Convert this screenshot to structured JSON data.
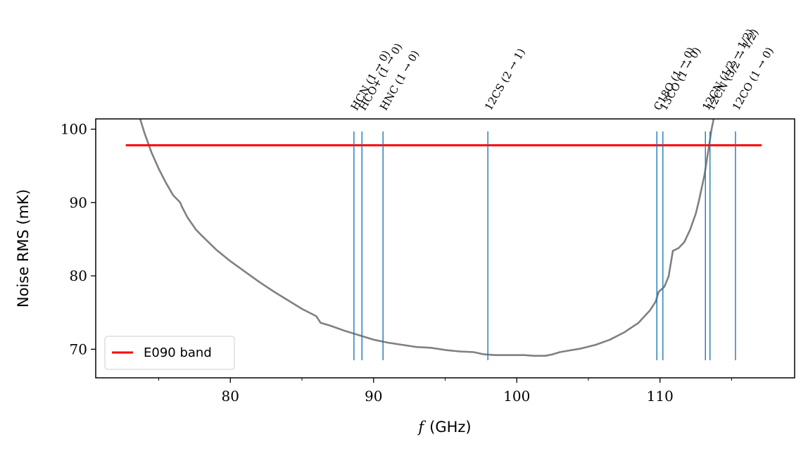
{
  "chart_data": {
    "type": "line",
    "xlabel_var": "f",
    "xlabel_unit": "(GHz)",
    "ylabel": "Noise RMS (mK)",
    "xlim": [
      70.6,
      119.4
    ],
    "ylim": [
      66.1,
      101.4
    ],
    "x_major_ticks": [
      80,
      90,
      100,
      110
    ],
    "x_minor_ticks": [
      75,
      85,
      95,
      105,
      115
    ],
    "y_ticks": [
      70,
      80,
      90,
      100
    ],
    "grid": false,
    "legend": {
      "position": "lower-left",
      "entries": [
        {
          "label": "E090 band",
          "color": "#ff0000"
        }
      ]
    },
    "band_line": {
      "name": "E090 band",
      "x": [
        72.7,
        117.1
      ],
      "y": 97.8,
      "color": "#ff0000"
    },
    "noise_curve": {
      "name": "noise",
      "color": "#808080",
      "points": [
        [
          73.7,
          101.4
        ],
        [
          74.0,
          99.5
        ],
        [
          74.5,
          96.8
        ],
        [
          75.0,
          94.6
        ],
        [
          75.5,
          92.7
        ],
        [
          76.0,
          91.0
        ],
        [
          76.5,
          90.0
        ],
        [
          76.6,
          89.5
        ],
        [
          77.0,
          88.0
        ],
        [
          77.6,
          86.3
        ],
        [
          78.0,
          85.5
        ],
        [
          79.0,
          83.6
        ],
        [
          80.0,
          82.0
        ],
        [
          81.0,
          80.6
        ],
        [
          82.0,
          79.2
        ],
        [
          83.0,
          77.9
        ],
        [
          84.0,
          76.7
        ],
        [
          85.0,
          75.5
        ],
        [
          86.0,
          74.5
        ],
        [
          86.3,
          73.6
        ],
        [
          87.0,
          73.2
        ],
        [
          88.0,
          72.5
        ],
        [
          89.0,
          71.9
        ],
        [
          90.0,
          71.3
        ],
        [
          91.0,
          70.9
        ],
        [
          92.0,
          70.6
        ],
        [
          93.0,
          70.3
        ],
        [
          94.0,
          70.2
        ],
        [
          95.0,
          69.9
        ],
        [
          96.0,
          69.7
        ],
        [
          97.0,
          69.6
        ],
        [
          97.7,
          69.3
        ],
        [
          98.5,
          69.2
        ],
        [
          99.5,
          69.2
        ],
        [
          100.5,
          69.2
        ],
        [
          101.2,
          69.1
        ],
        [
          102.0,
          69.1
        ],
        [
          102.5,
          69.3
        ],
        [
          103.0,
          69.6
        ],
        [
          103.6,
          69.8
        ],
        [
          104.5,
          70.1
        ],
        [
          105.5,
          70.6
        ],
        [
          106.5,
          71.3
        ],
        [
          107.5,
          72.3
        ],
        [
          108.5,
          73.6
        ],
        [
          109.3,
          75.3
        ],
        [
          109.7,
          76.5
        ],
        [
          109.9,
          77.8
        ],
        [
          110.3,
          78.5
        ],
        [
          110.6,
          79.9
        ],
        [
          110.9,
          83.4
        ],
        [
          111.3,
          83.8
        ],
        [
          111.7,
          84.6
        ],
        [
          112.1,
          86.3
        ],
        [
          112.5,
          88.5
        ],
        [
          112.7,
          90.1
        ],
        [
          113.1,
          93.7
        ],
        [
          113.4,
          97.4
        ],
        [
          113.6,
          100.0
        ],
        [
          113.75,
          101.4
        ]
      ]
    },
    "spectral_lines": [
      {
        "label": "HCN (1 → 0)",
        "x": 88.63
      },
      {
        "label": "HCO+ (1 → 0)",
        "x": 89.19
      },
      {
        "label": "HNC (1 → 0)",
        "x": 90.66
      },
      {
        "label": "12CS (2 → 1)",
        "x": 97.98
      },
      {
        "label": "C18O (1 → 0)",
        "x": 109.78
      },
      {
        "label": "13CO (1 → 0)",
        "x": 110.2
      },
      {
        "label": "12CN (1/2 → 1/2)",
        "x": 113.17
      },
      {
        "label": "12CN (3/2 → 1/2)",
        "x": 113.49
      },
      {
        "label": "12CO (1 → 0)",
        "x": 115.27
      }
    ],
    "spectral_line_color": "#1f77b4",
    "spectral_line_yrange": [
      68.5,
      99.7
    ]
  }
}
